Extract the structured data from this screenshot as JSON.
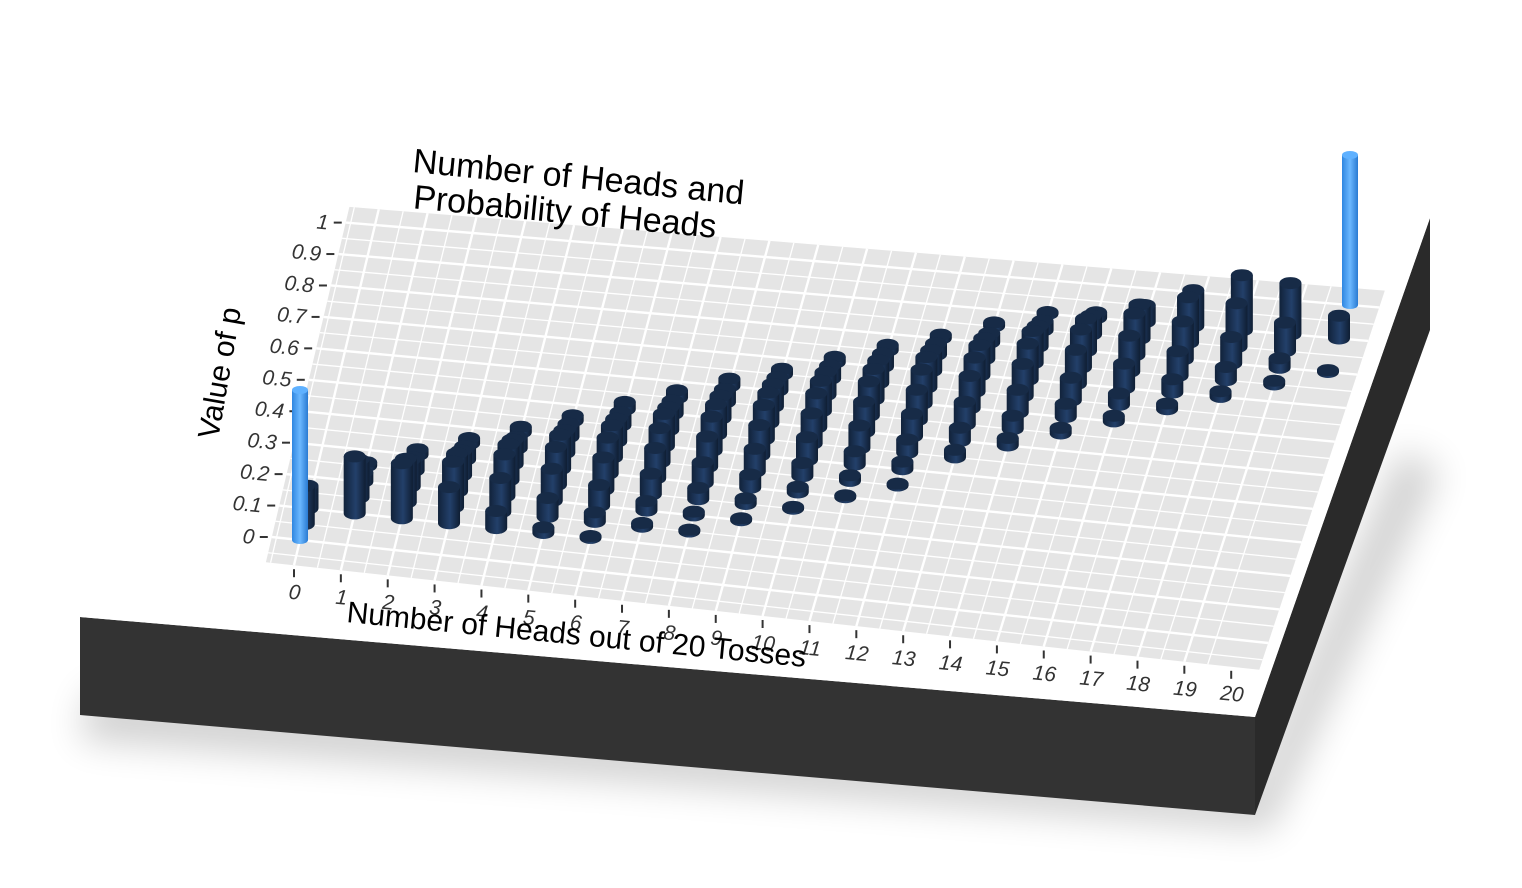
{
  "chart_data": {
    "type": "3d-bar",
    "title_lines": [
      "Number of Heads and",
      "Probability of Heads"
    ],
    "xlabel": "Number of Heads out of 20 Tosses",
    "ylabel": "Value of p",
    "x_ticks": [
      "0",
      "1",
      "2",
      "3",
      "4",
      "5",
      "6",
      "7",
      "8",
      "9",
      "10",
      "11",
      "12",
      "13",
      "14",
      "15",
      "16",
      "17",
      "18",
      "19",
      "20"
    ],
    "y_ticks": [
      "0",
      "0.1",
      "0.2",
      "0.3",
      "0.4",
      "0.5",
      "0.6",
      "0.7",
      "0.8",
      "0.9",
      "1"
    ],
    "xlim": [
      0,
      20
    ],
    "ylim": [
      0,
      1
    ],
    "grid": true,
    "legend": "none",
    "colors": {
      "panel": "#e5e5e5",
      "grid": "#ffffff",
      "bar_dark": "#1c3352",
      "bar_highlight": "#4aa3f5",
      "base_side": "#333333"
    },
    "series": [
      {
        "name": "",
        "color": "#1c3352",
        "points": [
          {
            "x": 0,
            "p": 0.05,
            "h": 0.2
          },
          {
            "x": 0,
            "p": 0.1,
            "h": 0.12
          },
          {
            "x": 1,
            "p": 0.1,
            "h": 0.3
          },
          {
            "x": 1,
            "p": 0.15,
            "h": 0.2
          },
          {
            "x": 1,
            "p": 0.2,
            "h": 0.05
          },
          {
            "x": 1,
            "p": 0.25,
            "h": 0.02
          },
          {
            "x": 2,
            "p": 0.1,
            "h": 0.29
          },
          {
            "x": 2,
            "p": 0.15,
            "h": 0.23
          },
          {
            "x": 2,
            "p": 0.2,
            "h": 0.14
          },
          {
            "x": 2,
            "p": 0.25,
            "h": 0.07
          },
          {
            "x": 2,
            "p": 0.3,
            "h": 0.03
          },
          {
            "x": 3,
            "p": 0.1,
            "h": 0.19
          },
          {
            "x": 3,
            "p": 0.15,
            "h": 0.24
          },
          {
            "x": 3,
            "p": 0.2,
            "h": 0.2
          },
          {
            "x": 3,
            "p": 0.25,
            "h": 0.13
          },
          {
            "x": 3,
            "p": 0.3,
            "h": 0.07
          },
          {
            "x": 3,
            "p": 0.35,
            "h": 0.03
          },
          {
            "x": 4,
            "p": 0.1,
            "h": 0.09
          },
          {
            "x": 4,
            "p": 0.15,
            "h": 0.18
          },
          {
            "x": 4,
            "p": 0.2,
            "h": 0.22
          },
          {
            "x": 4,
            "p": 0.25,
            "h": 0.19
          },
          {
            "x": 4,
            "p": 0.3,
            "h": 0.13
          },
          {
            "x": 4,
            "p": 0.35,
            "h": 0.06
          },
          {
            "x": 4,
            "p": 0.4,
            "h": 0.03
          },
          {
            "x": 5,
            "p": 0.1,
            "h": 0.03
          },
          {
            "x": 5,
            "p": 0.15,
            "h": 0.1
          },
          {
            "x": 5,
            "p": 0.2,
            "h": 0.17
          },
          {
            "x": 5,
            "p": 0.25,
            "h": 0.2
          },
          {
            "x": 5,
            "p": 0.3,
            "h": 0.18
          },
          {
            "x": 5,
            "p": 0.35,
            "h": 0.12
          },
          {
            "x": 5,
            "p": 0.4,
            "h": 0.07
          },
          {
            "x": 5,
            "p": 0.45,
            "h": 0.03
          },
          {
            "x": 6,
            "p": 0.1,
            "h": 0.01
          },
          {
            "x": 6,
            "p": 0.15,
            "h": 0.05
          },
          {
            "x": 6,
            "p": 0.2,
            "h": 0.11
          },
          {
            "x": 6,
            "p": 0.25,
            "h": 0.17
          },
          {
            "x": 6,
            "p": 0.3,
            "h": 0.19
          },
          {
            "x": 6,
            "p": 0.35,
            "h": 0.17
          },
          {
            "x": 6,
            "p": 0.4,
            "h": 0.12
          },
          {
            "x": 6,
            "p": 0.45,
            "h": 0.07
          },
          {
            "x": 6,
            "p": 0.5,
            "h": 0.04
          },
          {
            "x": 7,
            "p": 0.15,
            "h": 0.02
          },
          {
            "x": 7,
            "p": 0.2,
            "h": 0.05
          },
          {
            "x": 7,
            "p": 0.25,
            "h": 0.11
          },
          {
            "x": 7,
            "p": 0.3,
            "h": 0.16
          },
          {
            "x": 7,
            "p": 0.35,
            "h": 0.18
          },
          {
            "x": 7,
            "p": 0.4,
            "h": 0.17
          },
          {
            "x": 7,
            "p": 0.45,
            "h": 0.12
          },
          {
            "x": 7,
            "p": 0.5,
            "h": 0.07
          },
          {
            "x": 7,
            "p": 0.55,
            "h": 0.04
          },
          {
            "x": 8,
            "p": 0.15,
            "h": 0.01
          },
          {
            "x": 8,
            "p": 0.2,
            "h": 0.02
          },
          {
            "x": 8,
            "p": 0.25,
            "h": 0.06
          },
          {
            "x": 8,
            "p": 0.3,
            "h": 0.11
          },
          {
            "x": 8,
            "p": 0.35,
            "h": 0.16
          },
          {
            "x": 8,
            "p": 0.4,
            "h": 0.18
          },
          {
            "x": 8,
            "p": 0.45,
            "h": 0.16
          },
          {
            "x": 8,
            "p": 0.5,
            "h": 0.12
          },
          {
            "x": 8,
            "p": 0.55,
            "h": 0.07
          },
          {
            "x": 8,
            "p": 0.6,
            "h": 0.04
          },
          {
            "x": 9,
            "p": 0.2,
            "h": 0.01
          },
          {
            "x": 9,
            "p": 0.25,
            "h": 0.03
          },
          {
            "x": 9,
            "p": 0.3,
            "h": 0.07
          },
          {
            "x": 9,
            "p": 0.35,
            "h": 0.12
          },
          {
            "x": 9,
            "p": 0.4,
            "h": 0.16
          },
          {
            "x": 9,
            "p": 0.45,
            "h": 0.18
          },
          {
            "x": 9,
            "p": 0.5,
            "h": 0.16
          },
          {
            "x": 9,
            "p": 0.55,
            "h": 0.12
          },
          {
            "x": 9,
            "p": 0.6,
            "h": 0.07
          },
          {
            "x": 9,
            "p": 0.65,
            "h": 0.03
          },
          {
            "x": 10,
            "p": 0.25,
            "h": 0.01
          },
          {
            "x": 10,
            "p": 0.3,
            "h": 0.03
          },
          {
            "x": 10,
            "p": 0.35,
            "h": 0.07
          },
          {
            "x": 10,
            "p": 0.4,
            "h": 0.12
          },
          {
            "x": 10,
            "p": 0.45,
            "h": 0.16
          },
          {
            "x": 10,
            "p": 0.5,
            "h": 0.18
          },
          {
            "x": 10,
            "p": 0.55,
            "h": 0.16
          },
          {
            "x": 10,
            "p": 0.6,
            "h": 0.12
          },
          {
            "x": 10,
            "p": 0.65,
            "h": 0.07
          },
          {
            "x": 10,
            "p": 0.7,
            "h": 0.03
          },
          {
            "x": 11,
            "p": 0.3,
            "h": 0.01
          },
          {
            "x": 11,
            "p": 0.35,
            "h": 0.03
          },
          {
            "x": 11,
            "p": 0.4,
            "h": 0.07
          },
          {
            "x": 11,
            "p": 0.45,
            "h": 0.12
          },
          {
            "x": 11,
            "p": 0.5,
            "h": 0.16
          },
          {
            "x": 11,
            "p": 0.55,
            "h": 0.18
          },
          {
            "x": 11,
            "p": 0.6,
            "h": 0.16
          },
          {
            "x": 11,
            "p": 0.65,
            "h": 0.12
          },
          {
            "x": 11,
            "p": 0.7,
            "h": 0.07
          },
          {
            "x": 11,
            "p": 0.75,
            "h": 0.03
          },
          {
            "x": 12,
            "p": 0.35,
            "h": 0.01
          },
          {
            "x": 12,
            "p": 0.4,
            "h": 0.04
          },
          {
            "x": 12,
            "p": 0.45,
            "h": 0.07
          },
          {
            "x": 12,
            "p": 0.5,
            "h": 0.12
          },
          {
            "x": 12,
            "p": 0.55,
            "h": 0.16
          },
          {
            "x": 12,
            "p": 0.6,
            "h": 0.18
          },
          {
            "x": 12,
            "p": 0.65,
            "h": 0.16
          },
          {
            "x": 12,
            "p": 0.7,
            "h": 0.11
          },
          {
            "x": 12,
            "p": 0.75,
            "h": 0.06
          },
          {
            "x": 12,
            "p": 0.8,
            "h": 0.02
          },
          {
            "x": 13,
            "p": 0.45,
            "h": 0.04
          },
          {
            "x": 13,
            "p": 0.5,
            "h": 0.07
          },
          {
            "x": 13,
            "p": 0.55,
            "h": 0.12
          },
          {
            "x": 13,
            "p": 0.6,
            "h": 0.17
          },
          {
            "x": 13,
            "p": 0.65,
            "h": 0.18
          },
          {
            "x": 13,
            "p": 0.7,
            "h": 0.16
          },
          {
            "x": 13,
            "p": 0.75,
            "h": 0.11
          },
          {
            "x": 13,
            "p": 0.8,
            "h": 0.05
          },
          {
            "x": 13,
            "p": 0.85,
            "h": 0.02
          },
          {
            "x": 14,
            "p": 0.5,
            "h": 0.04
          },
          {
            "x": 14,
            "p": 0.55,
            "h": 0.07
          },
          {
            "x": 14,
            "p": 0.6,
            "h": 0.12
          },
          {
            "x": 14,
            "p": 0.65,
            "h": 0.17
          },
          {
            "x": 14,
            "p": 0.7,
            "h": 0.19
          },
          {
            "x": 14,
            "p": 0.75,
            "h": 0.17
          },
          {
            "x": 14,
            "p": 0.8,
            "h": 0.11
          },
          {
            "x": 14,
            "p": 0.85,
            "h": 0.05
          },
          {
            "x": 14,
            "p": 0.9,
            "h": 0.01
          },
          {
            "x": 15,
            "p": 0.55,
            "h": 0.03
          },
          {
            "x": 15,
            "p": 0.6,
            "h": 0.07
          },
          {
            "x": 15,
            "p": 0.65,
            "h": 0.12
          },
          {
            "x": 15,
            "p": 0.7,
            "h": 0.18
          },
          {
            "x": 15,
            "p": 0.75,
            "h": 0.2
          },
          {
            "x": 15,
            "p": 0.8,
            "h": 0.17
          },
          {
            "x": 15,
            "p": 0.85,
            "h": 0.1
          },
          {
            "x": 15,
            "p": 0.9,
            "h": 0.03
          },
          {
            "x": 16,
            "p": 0.6,
            "h": 0.03
          },
          {
            "x": 16,
            "p": 0.65,
            "h": 0.06
          },
          {
            "x": 16,
            "p": 0.7,
            "h": 0.13
          },
          {
            "x": 16,
            "p": 0.75,
            "h": 0.19
          },
          {
            "x": 16,
            "p": 0.8,
            "h": 0.22
          },
          {
            "x": 16,
            "p": 0.85,
            "h": 0.18
          },
          {
            "x": 16,
            "p": 0.9,
            "h": 0.09
          },
          {
            "x": 17,
            "p": 0.65,
            "h": 0.03
          },
          {
            "x": 17,
            "p": 0.7,
            "h": 0.07
          },
          {
            "x": 17,
            "p": 0.75,
            "h": 0.13
          },
          {
            "x": 17,
            "p": 0.8,
            "h": 0.2
          },
          {
            "x": 17,
            "p": 0.85,
            "h": 0.24
          },
          {
            "x": 17,
            "p": 0.9,
            "h": 0.19
          },
          {
            "x": 18,
            "p": 0.7,
            "h": 0.03
          },
          {
            "x": 18,
            "p": 0.75,
            "h": 0.07
          },
          {
            "x": 18,
            "p": 0.8,
            "h": 0.14
          },
          {
            "x": 18,
            "p": 0.85,
            "h": 0.23
          },
          {
            "x": 18,
            "p": 0.9,
            "h": 0.29
          },
          {
            "x": 19,
            "p": 0.75,
            "h": 0.02
          },
          {
            "x": 19,
            "p": 0.8,
            "h": 0.05
          },
          {
            "x": 19,
            "p": 0.85,
            "h": 0.15
          },
          {
            "x": 19,
            "p": 0.9,
            "h": 0.27
          },
          {
            "x": 20,
            "p": 0.8,
            "h": 0.01
          },
          {
            "x": 20,
            "p": 0.9,
            "h": 0.12
          }
        ]
      },
      {
        "name": "",
        "color": "#4aa3f5",
        "points": [
          {
            "x": 0,
            "p": 0.0,
            "h": 1.0
          },
          {
            "x": 20,
            "p": 1.0,
            "h": 1.0
          }
        ]
      }
    ]
  }
}
